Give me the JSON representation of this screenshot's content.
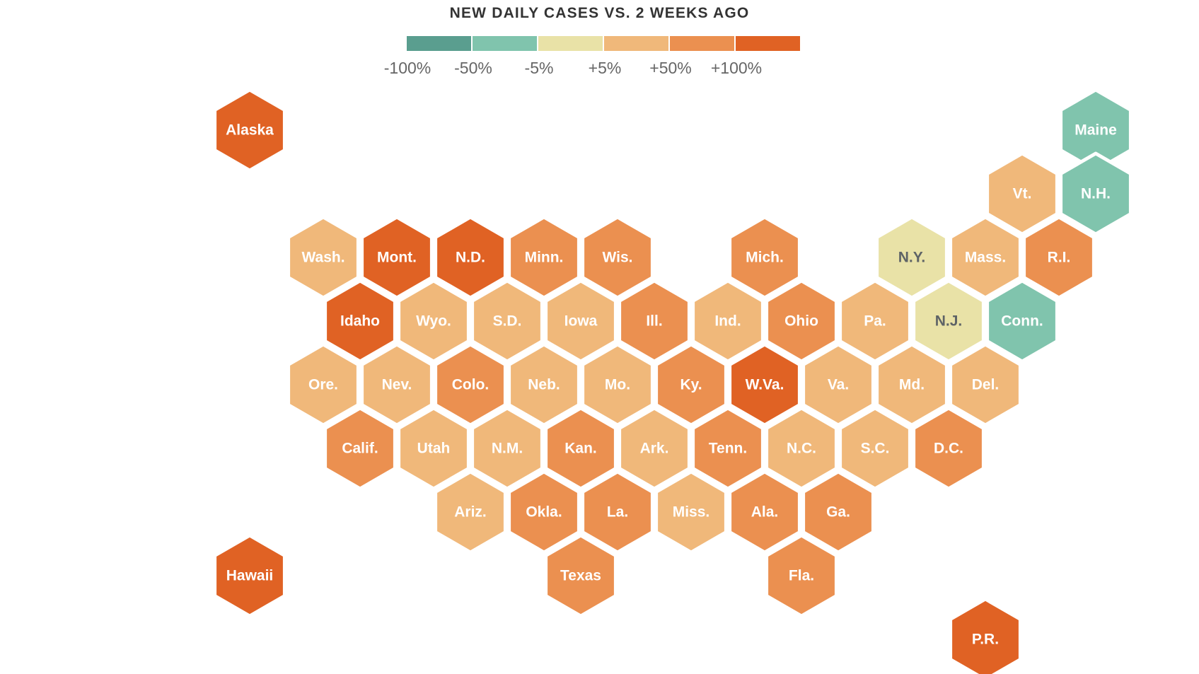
{
  "title": "NEW DAILY CASES VS. 2 WEEKS AGO",
  "legend": {
    "colors": [
      "#5a9e8f",
      "#80c4ad",
      "#e9e2a7",
      "#f0b87a",
      "#eb9050",
      "#e06224"
    ],
    "labels": [
      "-100%",
      "-50%",
      "-5%",
      "+5%",
      "+50%",
      "+100%"
    ]
  },
  "colors": {
    "dark_orange": "#e06224",
    "orange": "#eb9050",
    "light_orange": "#f0b87a",
    "pale_yellow": "#e9e2a7",
    "teal": "#80c4ad",
    "label_light": "#ffffff",
    "label_dark": "#5e6366"
  },
  "states": [
    {
      "label": "Alaska",
      "category": "+100%",
      "col": 3,
      "row": 0
    },
    {
      "label": "Maine",
      "category": "-50%",
      "col": 14.5,
      "row": 0
    },
    {
      "label": "Vt.",
      "category": "+5%",
      "col": 13,
      "row": 1
    },
    {
      "label": "N.H.",
      "category": "-50%",
      "col": 14,
      "row": 1
    },
    {
      "label": "Wash.",
      "category": "+5%",
      "col": 4,
      "row": 2
    },
    {
      "label": "Mont.",
      "category": "+100%",
      "col": 5,
      "row": 2
    },
    {
      "label": "N.D.",
      "category": "+100%",
      "col": 6,
      "row": 2
    },
    {
      "label": "Minn.",
      "category": "+50%",
      "col": 7,
      "row": 2
    },
    {
      "label": "Wis.",
      "category": "+50%",
      "col": 8,
      "row": 2
    },
    {
      "label": "Mich.",
      "category": "+50%",
      "col": 10,
      "row": 2
    },
    {
      "label": "N.Y.",
      "category": "-5%",
      "col": 12,
      "row": 2
    },
    {
      "label": "Mass.",
      "category": "+5%",
      "col": 13,
      "row": 2
    },
    {
      "label": "R.I.",
      "category": "+50%",
      "col": 14,
      "row": 2
    },
    {
      "label": "Idaho",
      "category": "+100%",
      "col": 4,
      "row": 3
    },
    {
      "label": "Wyo.",
      "category": "+5%",
      "col": 5,
      "row": 3
    },
    {
      "label": "S.D.",
      "category": "+5%",
      "col": 6,
      "row": 3
    },
    {
      "label": "Iowa",
      "category": "+5%",
      "col": 7,
      "row": 3
    },
    {
      "label": "Ill.",
      "category": "+50%",
      "col": 8,
      "row": 3
    },
    {
      "label": "Ind.",
      "category": "+5%",
      "col": 9,
      "row": 3
    },
    {
      "label": "Ohio",
      "category": "+50%",
      "col": 10,
      "row": 3
    },
    {
      "label": "Pa.",
      "category": "+5%",
      "col": 11,
      "row": 3
    },
    {
      "label": "N.J.",
      "category": "-5%",
      "col": 12,
      "row": 3
    },
    {
      "label": "Conn.",
      "category": "-50%",
      "col": 13,
      "row": 3
    },
    {
      "label": "Ore.",
      "category": "+5%",
      "col": 4,
      "row": 4
    },
    {
      "label": "Nev.",
      "category": "+5%",
      "col": 5,
      "row": 4
    },
    {
      "label": "Colo.",
      "category": "+50%",
      "col": 6,
      "row": 4
    },
    {
      "label": "Neb.",
      "category": "+5%",
      "col": 7,
      "row": 4
    },
    {
      "label": "Mo.",
      "category": "+5%",
      "col": 8,
      "row": 4
    },
    {
      "label": "Ky.",
      "category": "+50%",
      "col": 9,
      "row": 4
    },
    {
      "label": "W.Va.",
      "category": "+100%",
      "col": 10,
      "row": 4
    },
    {
      "label": "Va.",
      "category": "+5%",
      "col": 11,
      "row": 4
    },
    {
      "label": "Md.",
      "category": "+5%",
      "col": 12,
      "row": 4
    },
    {
      "label": "Del.",
      "category": "+5%",
      "col": 13,
      "row": 4
    },
    {
      "label": "Calif.",
      "category": "+50%",
      "col": 4,
      "row": 5
    },
    {
      "label": "Utah",
      "category": "+5%",
      "col": 5,
      "row": 5
    },
    {
      "label": "N.M.",
      "category": "+5%",
      "col": 6,
      "row": 5
    },
    {
      "label": "Kan.",
      "category": "+50%",
      "col": 7,
      "row": 5
    },
    {
      "label": "Ark.",
      "category": "+5%",
      "col": 8,
      "row": 5
    },
    {
      "label": "Tenn.",
      "category": "+50%",
      "col": 9,
      "row": 5
    },
    {
      "label": "N.C.",
      "category": "+5%",
      "col": 10,
      "row": 5
    },
    {
      "label": "S.C.",
      "category": "+5%",
      "col": 11,
      "row": 5
    },
    {
      "label": "D.C.",
      "category": "+50%",
      "col": 12,
      "row": 5
    },
    {
      "label": "Ariz.",
      "category": "+5%",
      "col": 6,
      "row": 6
    },
    {
      "label": "Okla.",
      "category": "+50%",
      "col": 7,
      "row": 6
    },
    {
      "label": "La.",
      "category": "+50%",
      "col": 8,
      "row": 6
    },
    {
      "label": "Miss.",
      "category": "+5%",
      "col": 9,
      "row": 6
    },
    {
      "label": "Ala.",
      "category": "+50%",
      "col": 10,
      "row": 6
    },
    {
      "label": "Ga.",
      "category": "+50%",
      "col": 11,
      "row": 6
    },
    {
      "label": "Hawaii",
      "category": "+100%",
      "col": 2.5,
      "row": 7
    },
    {
      "label": "Texas",
      "category": "+50%",
      "col": 7,
      "row": 7
    },
    {
      "label": "Fla.",
      "category": "+50%",
      "col": 10,
      "row": 7
    },
    {
      "label": "P.R.",
      "category": "+100%",
      "col": 13,
      "row": 8
    }
  ]
}
